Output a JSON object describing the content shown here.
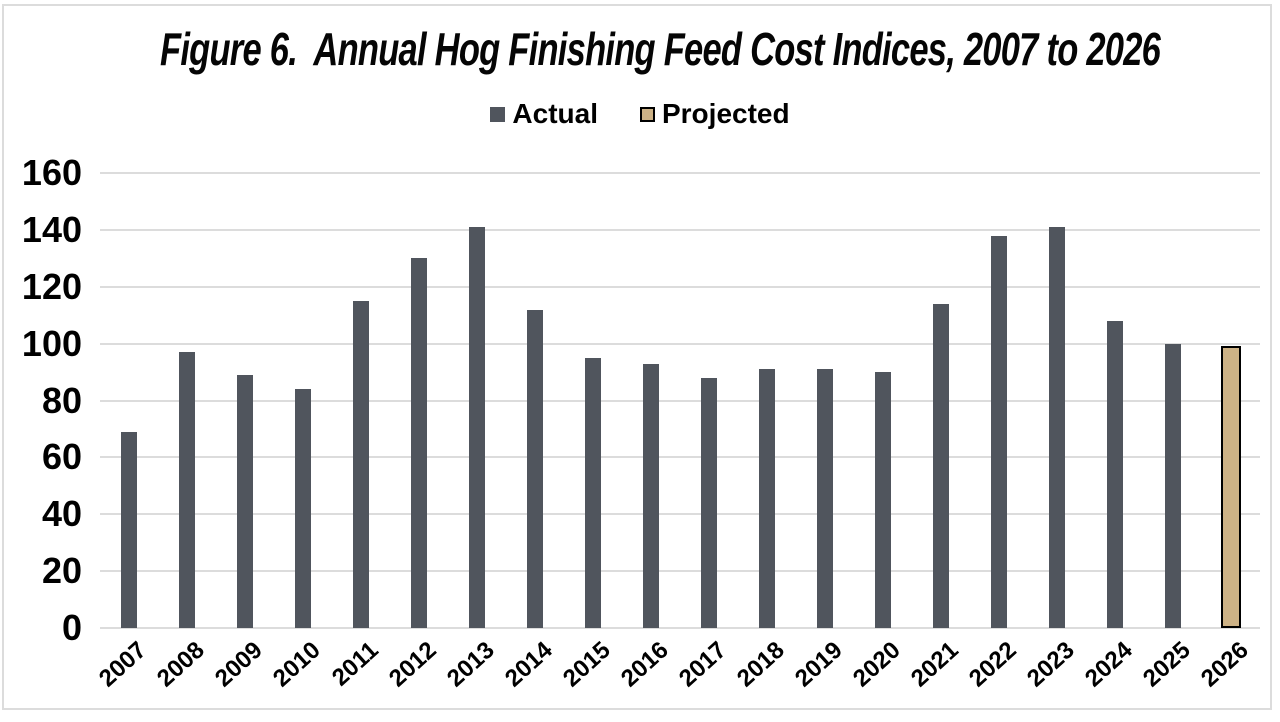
{
  "frame": {
    "border_color": "#dcdcdc"
  },
  "title": "Figure 6.  Annual Hog Finishing Feed Cost Indices, 2007 to 2026",
  "legend": {
    "items": [
      {
        "label": "Actual",
        "swatch_color": "#50555d",
        "swatch_border": ""
      },
      {
        "label": "Projected",
        "swatch_color": "#cdb286",
        "swatch_border": "#000000"
      }
    ]
  },
  "chart_data": {
    "type": "bar",
    "title": "Figure 6. Annual Hog Finishing Feed Cost Indices, 2007 to 2026",
    "categories": [
      "2007",
      "2008",
      "2009",
      "2010",
      "2011",
      "2012",
      "2013",
      "2014",
      "2015",
      "2016",
      "2017",
      "2018",
      "2019",
      "2020",
      "2021",
      "2022",
      "2023",
      "2024",
      "2025",
      "2026"
    ],
    "series": [
      {
        "name": "Actual",
        "color": "#50555d",
        "border_color": "",
        "values": [
          69,
          97,
          89,
          84,
          115,
          130,
          141,
          112,
          95,
          93,
          88,
          91,
          91,
          90,
          114,
          138,
          141,
          108,
          100,
          null
        ]
      },
      {
        "name": "Projected",
        "color": "#cdb286",
        "border_color": "#000000",
        "values": [
          null,
          null,
          null,
          null,
          null,
          null,
          null,
          null,
          null,
          null,
          null,
          null,
          null,
          null,
          null,
          null,
          null,
          null,
          null,
          99
        ]
      }
    ],
    "xlabel": "",
    "ylabel": "",
    "ylim": [
      0,
      160
    ],
    "yticks": [
      0,
      20,
      40,
      60,
      80,
      100,
      120,
      140,
      160
    ],
    "grid": true,
    "gridline_color": "#dcdcdc",
    "legend_position": "top"
  }
}
